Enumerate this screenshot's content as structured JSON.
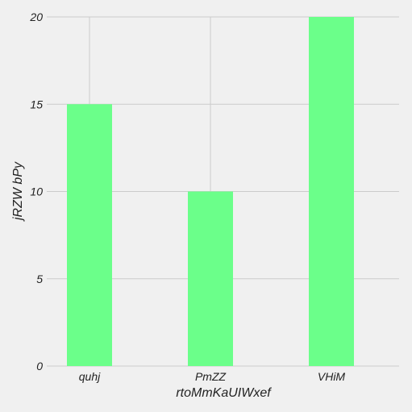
{
  "chart_data": {
    "type": "bar",
    "title": "",
    "xlabel": "rtoMmKaUIWxef",
    "ylabel": "jRZW bPy",
    "categories": [
      "quhj",
      "PmZZ",
      "VHiM"
    ],
    "series": [
      {
        "values": [
          15,
          10,
          20
        ]
      }
    ],
    "ylim": [
      0,
      20
    ],
    "yticks": [
      "0",
      "5",
      "10",
      "15",
      "20"
    ],
    "grid": true,
    "colors": {
      "bar": "#6bff8a",
      "grid": "#cbcbcb",
      "background": "#f0f0f0"
    }
  }
}
